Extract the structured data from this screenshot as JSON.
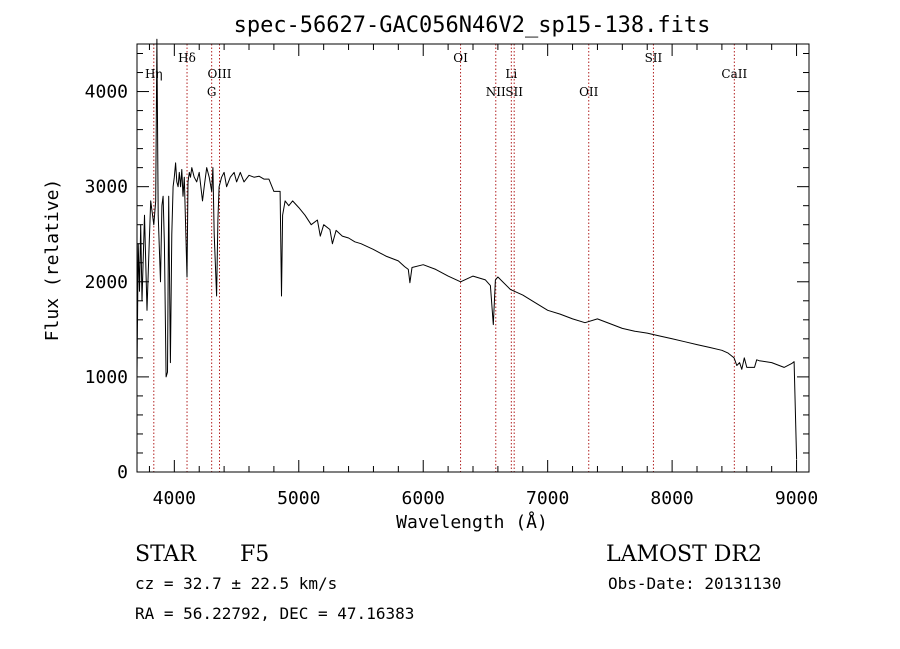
{
  "chart_data": {
    "type": "line",
    "title": "spec-56627-GAC056N46V2_sp15-138.fits",
    "xlabel": "Wavelength (Å)",
    "ylabel": "Flux (relative)",
    "xlim": [
      3700,
      9100
    ],
    "ylim": [
      0,
      4500
    ],
    "x_ticks": [
      4000,
      5000,
      6000,
      7000,
      8000,
      9000
    ],
    "y_ticks": [
      0,
      1000,
      2000,
      3000,
      4000
    ],
    "line_color": "#000000",
    "marker_color": "#b22222",
    "series": [
      {
        "x": [
          3700,
          3710,
          3720,
          3730,
          3740,
          3760,
          3780,
          3798,
          3810,
          3835,
          3850,
          3860,
          3870,
          3889,
          3900,
          3910,
          3920,
          3934,
          3945,
          3955,
          3968,
          3980,
          3990,
          4000,
          4010,
          4020,
          4030,
          4040,
          4050,
          4060,
          4070,
          4080,
          4102,
          4110,
          4120,
          4130,
          4140,
          4160,
          4180,
          4200,
          4226,
          4240,
          4260,
          4280,
          4300,
          4310,
          4320,
          4340,
          4350,
          4360,
          4380,
          4400,
          4420,
          4450,
          4480,
          4500,
          4530,
          4560,
          4600,
          4640,
          4680,
          4720,
          4760,
          4800,
          4830,
          4850,
          4861,
          4870,
          4890,
          4920,
          4950,
          5000,
          5050,
          5100,
          5150,
          5173,
          5200,
          5250,
          5270,
          5300,
          5350,
          5400,
          5450,
          5500,
          5600,
          5700,
          5800,
          5850,
          5880,
          5893,
          5910,
          6000,
          6100,
          6200,
          6300,
          6400,
          6500,
          6540,
          6563,
          6580,
          6600,
          6700,
          6800,
          6900,
          7000,
          7100,
          7200,
          7300,
          7400,
          7500,
          7600,
          7700,
          7800,
          7900,
          8000,
          8100,
          8200,
          8300,
          8400,
          8450,
          8498,
          8520,
          8542,
          8560,
          8580,
          8600,
          8662,
          8680,
          8700,
          8800,
          8900,
          8960,
          8980,
          9000
        ],
        "y": [
          1000,
          2400,
          1900,
          2600,
          1800,
          2700,
          1700,
          2400,
          2850,
          2600,
          2850,
          4550,
          2700,
          2000,
          2800,
          2900,
          2400,
          1000,
          1050,
          2900,
          1150,
          2500,
          3000,
          3100,
          3250,
          3050,
          3000,
          3150,
          3000,
          3180,
          2900,
          3100,
          2050,
          3050,
          3150,
          3100,
          3200,
          3100,
          3050,
          3150,
          2850,
          3000,
          3200,
          3100,
          2950,
          3200,
          2500,
          1850,
          2650,
          3000,
          3100,
          3150,
          3000,
          3100,
          3150,
          3050,
          3150,
          3050,
          3120,
          3100,
          3110,
          3080,
          3080,
          2950,
          2950,
          2950,
          1850,
          2700,
          2850,
          2800,
          2850,
          2780,
          2700,
          2600,
          2650,
          2480,
          2600,
          2550,
          2400,
          2540,
          2480,
          2460,
          2420,
          2400,
          2340,
          2270,
          2220,
          2160,
          2130,
          1990,
          2150,
          2180,
          2130,
          2060,
          2000,
          2060,
          2020,
          1960,
          1550,
          2020,
          2050,
          1920,
          1860,
          1780,
          1700,
          1660,
          1610,
          1570,
          1610,
          1560,
          1510,
          1480,
          1460,
          1430,
          1400,
          1370,
          1340,
          1310,
          1280,
          1250,
          1200,
          1120,
          1150,
          1080,
          1200,
          1100,
          1100,
          1180,
          1170,
          1150,
          1100,
          1140,
          1160,
          130
        ]
      }
    ],
    "spectral_lines": [
      {
        "label": "Hη",
        "x": 3835,
        "row": 1
      },
      {
        "label": "Hδ",
        "x": 4102,
        "row": 0
      },
      {
        "label": "OIII",
        "x": 4363,
        "row": 1
      },
      {
        "label": "G",
        "x": 4300,
        "row": 2
      },
      {
        "label": "OI",
        "x": 6300,
        "row": 0
      },
      {
        "label": "NII",
        "x": 6583,
        "row": 2
      },
      {
        "label": "Li",
        "x": 6708,
        "row": 1
      },
      {
        "label": "SII",
        "x": 6731,
        "row": 2
      },
      {
        "label": "OII",
        "x": 7330,
        "row": 2
      },
      {
        "label": "SII",
        "x": 7850,
        "row": 0
      },
      {
        "label": "CaII",
        "x": 8500,
        "row": 1
      }
    ]
  },
  "info": {
    "object_type": "STAR",
    "subclass": "F5",
    "survey": "LAMOST DR2",
    "cz": "cz = 32.7 ± 22.5 km/s",
    "obs_date": "Obs-Date: 20131130",
    "coords": "RA =  56.22792, DEC =  47.16383"
  }
}
